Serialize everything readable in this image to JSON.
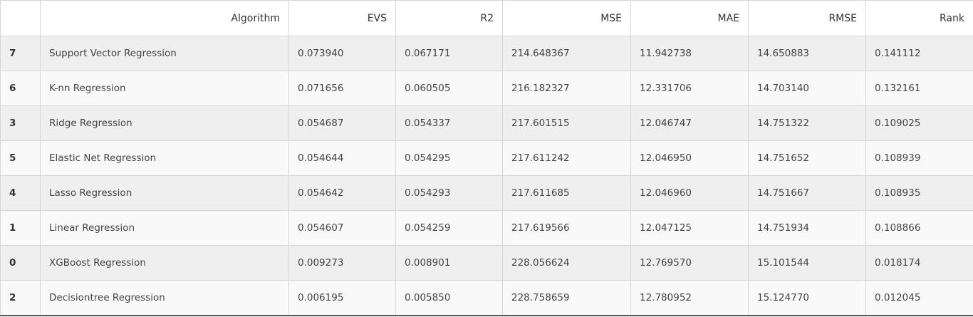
{
  "table": {
    "columns": [
      "",
      "Algorithm",
      "EVS",
      "R2",
      "MSE",
      "MAE",
      "RMSE",
      "Rank"
    ],
    "rows": [
      [
        "7",
        "Support Vector Regression",
        "0.073940",
        "0.067171",
        "214.648367",
        "11.942738",
        "14.650883",
        "0.141112"
      ],
      [
        "6",
        "K-nn Regression",
        "0.071656",
        "0.060505",
        "216.182327",
        "12.331706",
        "14.703140",
        "0.132161"
      ],
      [
        "3",
        "Ridge Regression",
        "0.054687",
        "0.054337",
        "217.601515",
        "12.046747",
        "14.751322",
        "0.109025"
      ],
      [
        "5",
        "Elastic Net Regression",
        "0.054644",
        "0.054295",
        "217.611242",
        "12.046950",
        "14.751652",
        "0.108939"
      ],
      [
        "4",
        "Lasso Regression",
        "0.054642",
        "0.054293",
        "217.611685",
        "12.046960",
        "14.751667",
        "0.108935"
      ],
      [
        "1",
        "Linear Regression",
        "0.054607",
        "0.054259",
        "217.619566",
        "12.047125",
        "14.751934",
        "0.108866"
      ],
      [
        "0",
        "XGBoost Regression",
        "0.009273",
        "0.008901",
        "228.056624",
        "12.769570",
        "15.101544",
        "0.018174"
      ],
      [
        "2",
        "Decisiontree Regression",
        "0.006195",
        "0.005850",
        "228.758659",
        "12.780952",
        "15.124770",
        "0.012045"
      ]
    ]
  }
}
